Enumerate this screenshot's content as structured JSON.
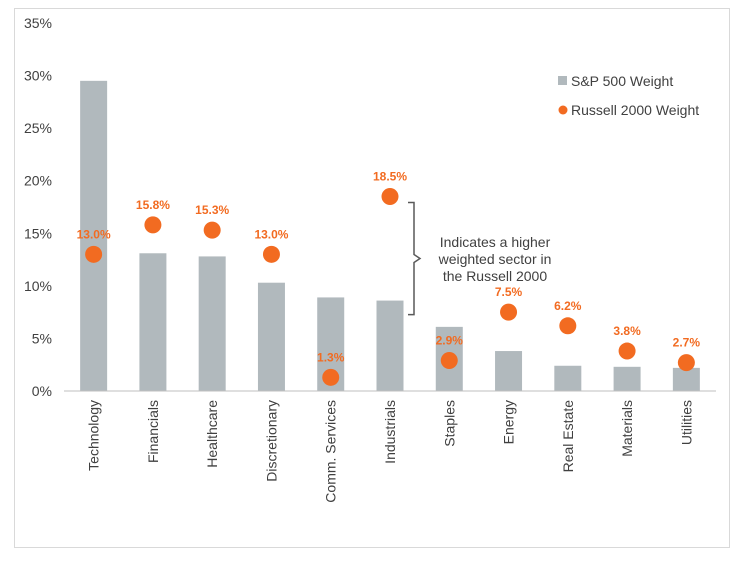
{
  "chart_data": {
    "type": "bar",
    "categories": [
      "Technology",
      "Financials",
      "Healthcare",
      "Discretionary",
      "Comm. Services",
      "Industrials",
      "Staples",
      "Energy",
      "Real Estate",
      "Materials",
      "Utilities"
    ],
    "series": [
      {
        "name": "S&P 500 Weight",
        "type": "bar",
        "color": "#b1b9bd",
        "values": [
          29.5,
          13.1,
          12.8,
          10.3,
          8.9,
          8.6,
          6.1,
          3.8,
          2.4,
          2.3,
          2.2
        ]
      },
      {
        "name": "Russell 2000 Weight",
        "type": "scatter",
        "color": "#f26b21",
        "values": [
          13.0,
          15.8,
          15.3,
          13.0,
          1.3,
          18.5,
          2.9,
          7.5,
          6.2,
          3.8,
          2.7
        ]
      }
    ],
    "data_labels": [
      "13.0%",
      "15.8%",
      "15.3%",
      "13.0%",
      "1.3%",
      "18.5%",
      "2.9%",
      "7.5%",
      "6.2%",
      "3.8%",
      "2.7%"
    ],
    "ylim": [
      0,
      35
    ],
    "yticks": [
      "0%",
      "5%",
      "10%",
      "15%",
      "20%",
      "25%",
      "30%",
      "35%"
    ],
    "legend_position": "top-right",
    "grid": false,
    "annotation": {
      "lines": [
        "Indicates a higher",
        "weighted sector in",
        "the Russell 2000"
      ],
      "target_category": "Industrials"
    }
  }
}
